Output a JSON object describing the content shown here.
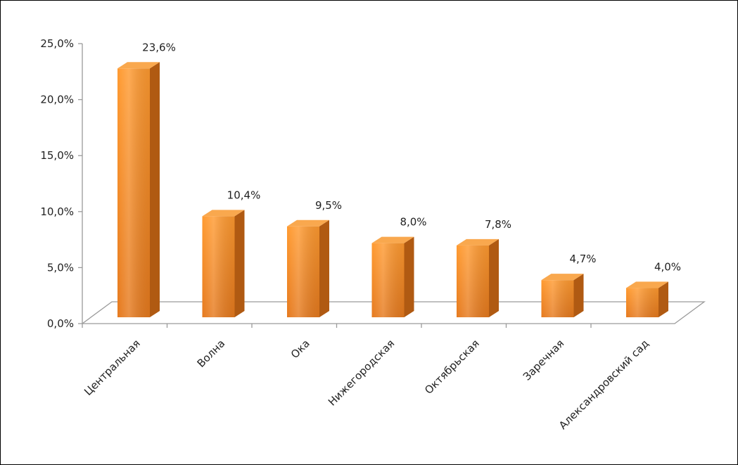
{
  "chart_data": {
    "type": "bar",
    "title": "",
    "xlabel": "",
    "ylabel": "",
    "categories": [
      "Центральная",
      "Волна",
      "Ока",
      "Нижегородская",
      "Октябрьская",
      "Заречная",
      "Александровский сад"
    ],
    "values": [
      23.6,
      10.4,
      9.5,
      8.0,
      7.8,
      4.7,
      4.0
    ],
    "value_labels": [
      "23,6%",
      "10,4%",
      "9,5%",
      "8,0%",
      "7,8%",
      "4,7%",
      "4,0%"
    ],
    "ylim": [
      0,
      25
    ],
    "yticks": [
      0,
      5,
      10,
      15,
      20,
      25
    ],
    "ytick_labels": [
      "0,0%",
      "5,0%",
      "10,0%",
      "15,0%",
      "20,0%",
      "25,0%"
    ],
    "style": "3d-column",
    "grid": false,
    "legend": "none",
    "colors": {
      "bar_front": "#f7922b",
      "bar_side": "#b05a12",
      "bar_top": "#f9a84e",
      "floor_line": "#9a9a9a"
    }
  }
}
